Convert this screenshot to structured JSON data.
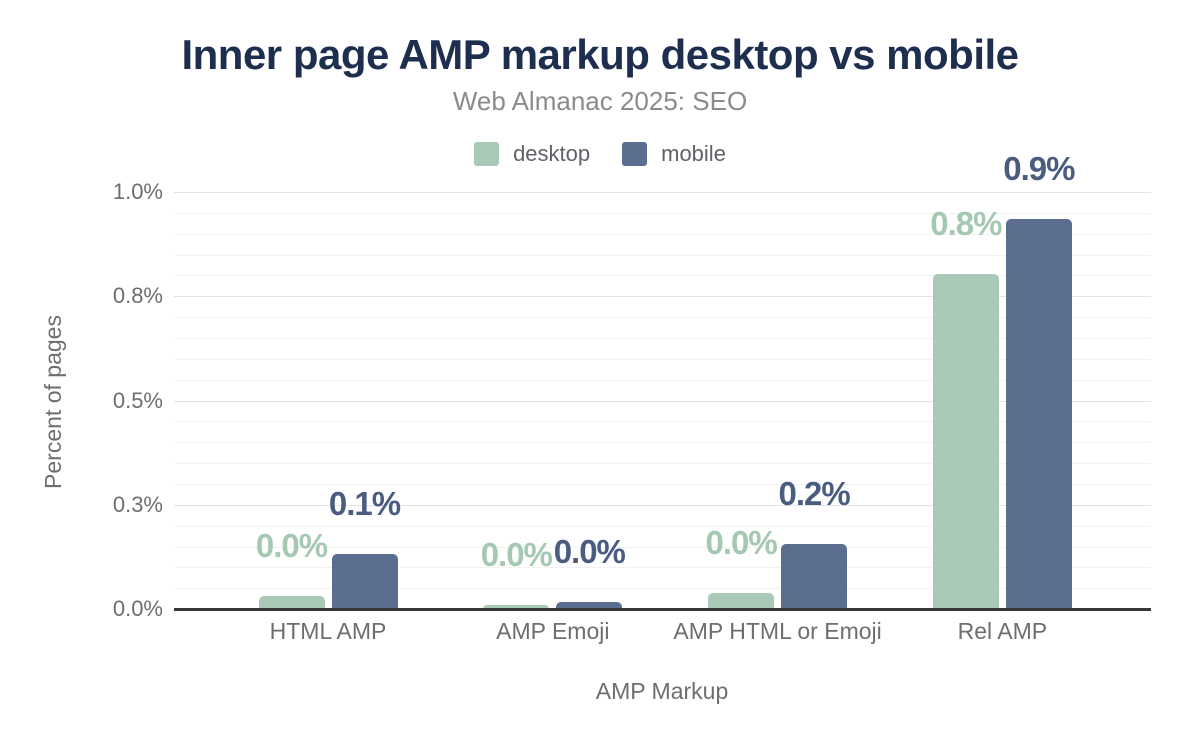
{
  "title": "Inner page AMP markup desktop vs mobile",
  "subtitle": "Web Almanac 2025: SEO",
  "legend": {
    "items": [
      {
        "label": "desktop",
        "color": "#a9cab7"
      },
      {
        "label": "mobile",
        "color": "#5b6e90"
      }
    ]
  },
  "colors": {
    "title": "#1d2e4f",
    "subtitle": "#8b8b8b",
    "axis_text": "#6e6e6e",
    "desktop_bar": "#a9cab7",
    "desktop_label": "#a5c8b3",
    "mobile_bar": "#5b6e90",
    "mobile_label": "#4a5c80",
    "gridline_minor": "#f2f2f2",
    "gridline_major": "#e4e4e4",
    "baseline": "#373737"
  },
  "chart_data": {
    "type": "bar",
    "title": "Inner page AMP markup desktop vs mobile",
    "subtitle": "Web Almanac 2025: SEO",
    "categories": [
      "HTML AMP",
      "AMP Emoji",
      "AMP HTML or Emoji",
      "Rel AMP"
    ],
    "series": [
      {
        "name": "desktop",
        "color": "#a9cab7",
        "label_color": "#a5c8b3",
        "values": [
          0.031,
          0.01,
          0.038,
          0.803
        ],
        "labels": [
          "0.0%",
          "0.0%",
          "0.0%",
          "0.8%"
        ]
      },
      {
        "name": "mobile",
        "color": "#5b6e90",
        "label_color": "#4a5c80",
        "values": [
          0.132,
          0.016,
          0.156,
          0.935
        ],
        "labels": [
          "0.1%",
          "0.0%",
          "0.2%",
          "0.9%"
        ]
      }
    ],
    "xlabel": "AMP Markup",
    "ylabel": "Percent of pages",
    "ylim": [
      0,
      1.0
    ],
    "yticks": [
      {
        "value": 0.0,
        "label": "0.0%"
      },
      {
        "value": 0.25,
        "label": "0.3%"
      },
      {
        "value": 0.5,
        "label": "0.5%"
      },
      {
        "value": 0.75,
        "label": "0.8%"
      },
      {
        "value": 1.0,
        "label": "1.0%"
      }
    ],
    "minor_tick_step": 0.05,
    "grid": true,
    "legend_position": "top"
  }
}
